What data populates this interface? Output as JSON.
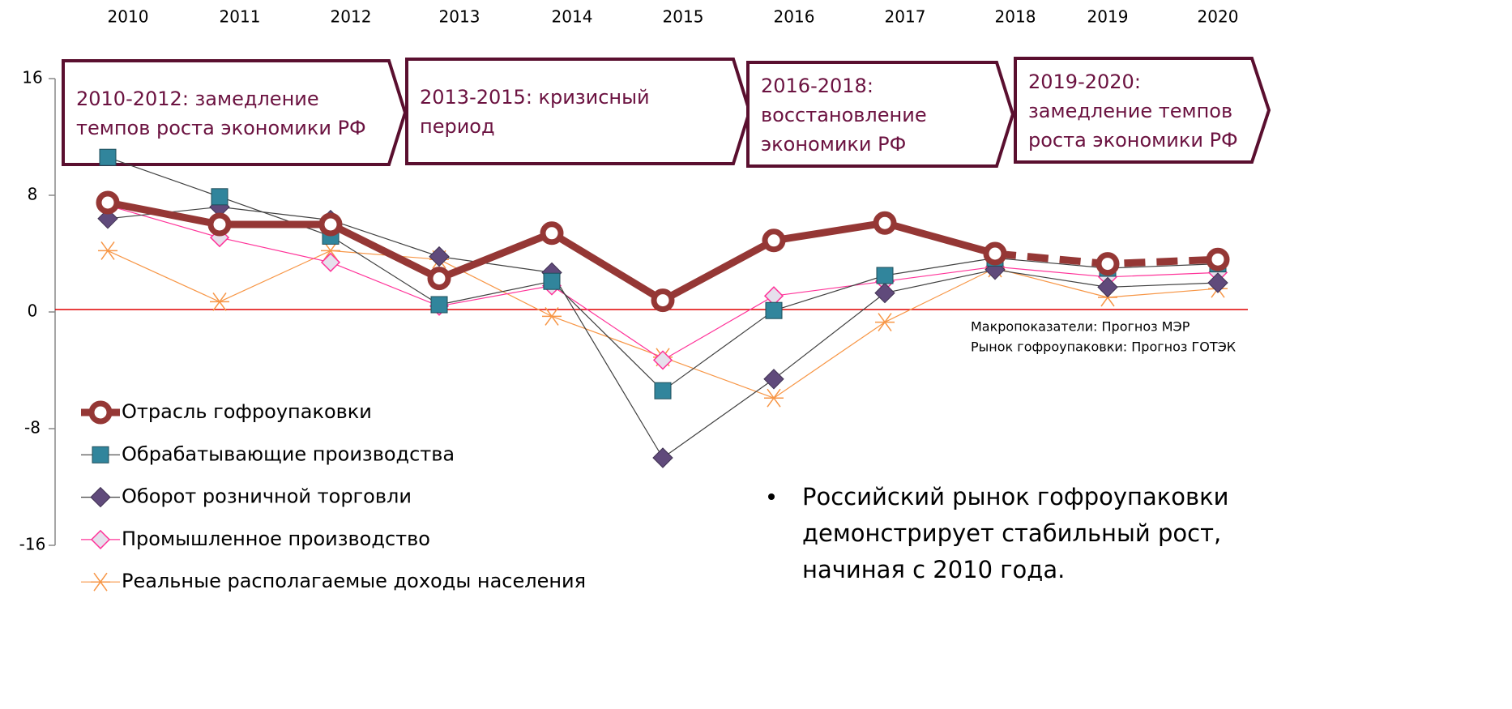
{
  "chart_data": {
    "type": "line",
    "x": [
      "2010",
      "2011",
      "2012",
      "2013",
      "2014",
      "2015",
      "2016",
      "2017",
      "2018",
      "2019",
      "2020"
    ],
    "ylim": [
      -16,
      16
    ],
    "yticks": [
      16,
      8,
      0,
      -8,
      -16
    ],
    "series": [
      {
        "name": "Отрасль гофроупаковки",
        "color": "#953735",
        "marker": "circle",
        "forecast_from": "2018",
        "values": [
          7.5,
          6.0,
          6.0,
          2.3,
          5.4,
          0.8,
          4.9,
          6.1,
          4.0,
          3.3,
          3.6
        ]
      },
      {
        "name": "Обрабатывающие производства",
        "color": "#31859c",
        "line_color": "#404040",
        "marker": "square",
        "values": [
          10.6,
          7.9,
          5.2,
          0.5,
          2.1,
          -5.4,
          0.1,
          2.5,
          3.7,
          3.0,
          3.3
        ]
      },
      {
        "name": "Оборот  розничной  торговли",
        "color": "#604a7b",
        "line_color": "#404040",
        "marker": "diamond",
        "values": [
          6.4,
          7.2,
          6.3,
          3.8,
          2.7,
          -10.0,
          -4.6,
          1.3,
          2.9,
          1.7,
          2.0
        ]
      },
      {
        "name": "Промышленное производство",
        "color": "#ff3399",
        "marker": "diamond-light",
        "values": [
          7.3,
          5.1,
          3.4,
          0.4,
          1.8,
          -3.3,
          1.1,
          2.1,
          3.1,
          2.4,
          2.7
        ]
      },
      {
        "name": "Реальные располагаемые доходы населения",
        "color": "#f79646",
        "marker": "star",
        "values": [
          4.2,
          0.7,
          4.2,
          3.6,
          -0.3,
          -3.1,
          -5.9,
          -0.7,
          3.0,
          1.0,
          1.6
        ]
      }
    ]
  },
  "periods": [
    {
      "lines": [
        "2010-2012: замедление",
        "темпов роста экономики РФ"
      ]
    },
    {
      "lines": [
        "2013-2015: кризисный",
        "период"
      ]
    },
    {
      "lines": [
        "2016-2018:",
        "восстановление",
        "экономики РФ"
      ]
    },
    {
      "lines": [
        "2019-2020:",
        "замедление темпов",
        "роста экономики РФ"
      ]
    }
  ],
  "notes": [
    "Макропоказатели: Прогноз МЭР",
    "Рынок гофроупаковки: Прогноз ГОТЭК"
  ],
  "bullet": [
    "Российский рынок гофроупаковки",
    "демонстрирует стабильный  рост,",
    "начиная с 2010 года."
  ]
}
